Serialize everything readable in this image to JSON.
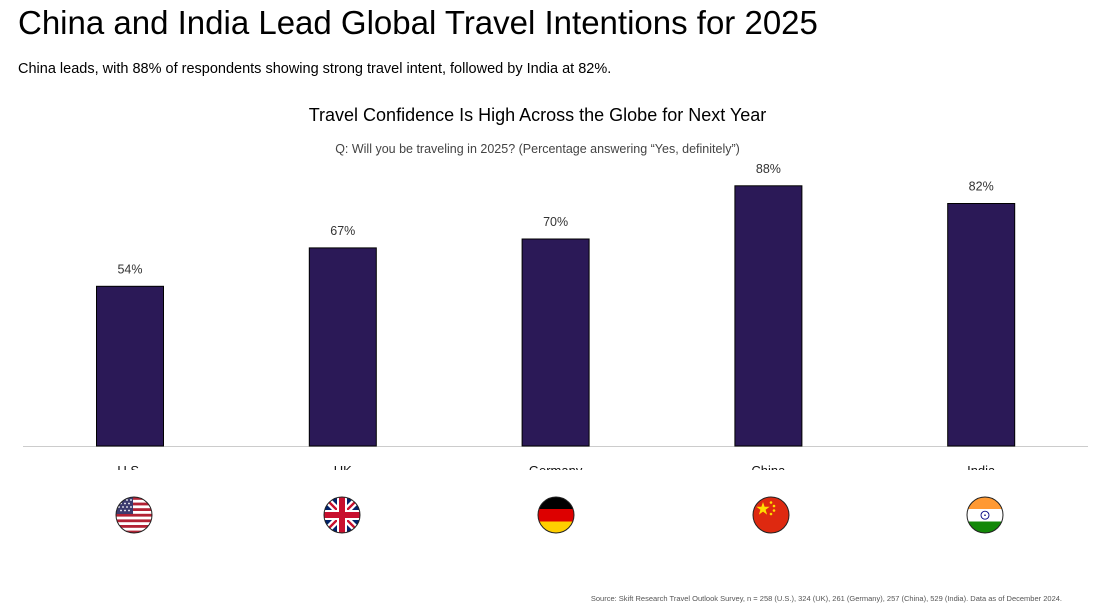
{
  "page": {
    "title": "China and India Lead Global Travel Intentions for 2025",
    "subtitle": "China leads, with 88% of respondents showing strong travel intent, followed by India at 82%.",
    "source": "Source: Skift Research Travel Outlook Survey, n = 258 (U.S.), 324 (UK), 261 (Germany), 257 (China), 529 (India). Data as of December 2024."
  },
  "chart_data": {
    "type": "bar",
    "title": "Travel Confidence Is High Across the Globe for Next Year",
    "question": "Q: Will you be traveling in 2025? (Percentage answering “Yes, definitely”)",
    "categories": [
      "U.S.",
      "UK",
      "Germany",
      "China",
      "India"
    ],
    "values": [
      54,
      67,
      70,
      88,
      82
    ],
    "data_labels": [
      "54%",
      "67%",
      "70%",
      "88%",
      "82%"
    ],
    "flags": [
      "usa-flag-icon",
      "uk-flag-icon",
      "germany-flag-icon",
      "china-flag-icon",
      "india-flag-icon"
    ],
    "ylim": [
      0,
      100
    ],
    "xlabel": "",
    "ylabel": "",
    "grid": false,
    "bar_color": "#2b1957",
    "axis_color": "#cccccc"
  }
}
